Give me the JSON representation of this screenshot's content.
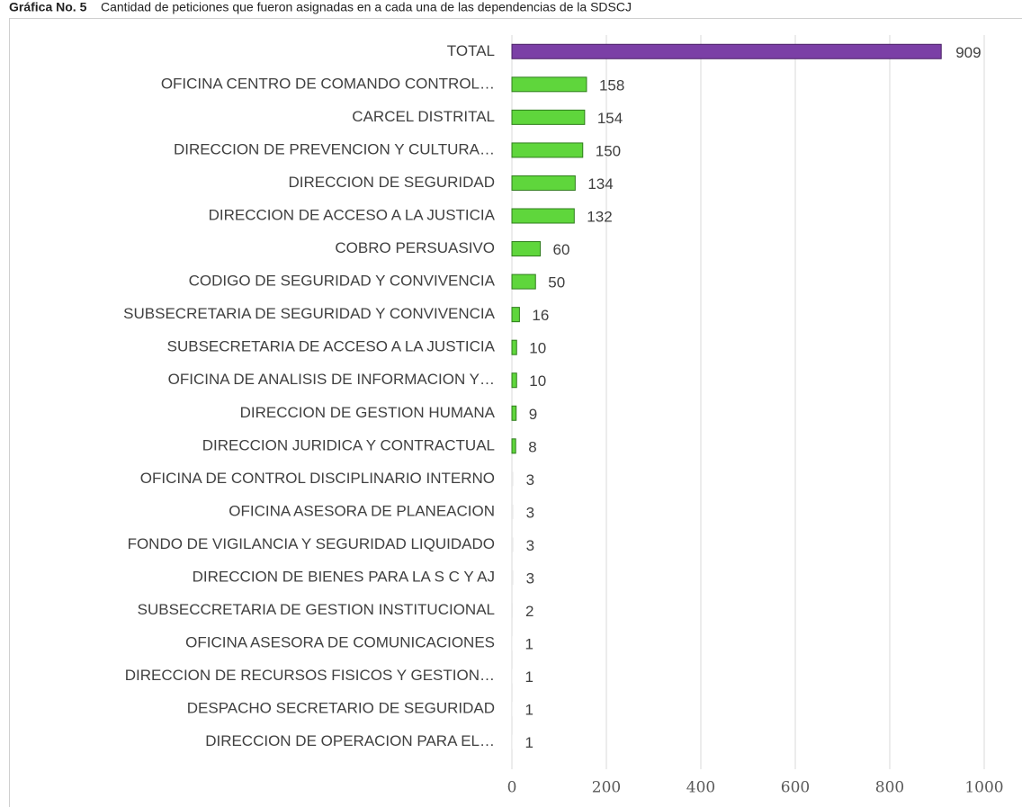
{
  "chart_data": {
    "type": "hbar",
    "title": "Gráfica No. 5",
    "subtitle": "Cantidad de peticiones que fueron asignadas en a cada una de las dependencias de la SDSCJ",
    "categories": [
      "TOTAL",
      "OFICINA CENTRO DE COMANDO CONTROL…",
      "CARCEL DISTRITAL",
      "DIRECCION DE PREVENCION Y CULTURA…",
      "DIRECCION DE SEGURIDAD",
      "DIRECCION DE ACCESO A LA JUSTICIA",
      "COBRO PERSUASIVO",
      "CODIGO DE SEGURIDAD Y CONVIVENCIA",
      "SUBSECRETARIA DE SEGURIDAD Y CONVIVENCIA",
      "SUBSECRETARIA DE ACCESO A LA JUSTICIA",
      "OFICINA DE ANALISIS DE INFORMACION Y…",
      "DIRECCION DE GESTION HUMANA",
      "DIRECCION JURIDICA Y CONTRACTUAL",
      "OFICINA DE CONTROL DISCIPLINARIO INTERNO",
      "OFICINA ASESORA DE PLANEACION",
      "FONDO DE VIGILANCIA Y SEGURIDAD LIQUIDADO",
      "DIRECCION DE BIENES PARA LA S C Y AJ",
      "SUBSECCRETARIA DE GESTION INSTITUCIONAL",
      "OFICINA ASESORA DE COMUNICACIONES",
      "DIRECCION DE RECURSOS FISICOS Y GESTION…",
      "DESPACHO SECRETARIO DE SEGURIDAD",
      "DIRECCION DE OPERACION PARA EL…"
    ],
    "values": [
      909,
      158,
      154,
      150,
      134,
      132,
      60,
      50,
      16,
      10,
      10,
      9,
      8,
      3,
      3,
      3,
      3,
      2,
      1,
      1,
      1,
      1
    ],
    "colors": [
      "#7b3fa6",
      "#5fd63c",
      "#5fd63c",
      "#5fd63c",
      "#5fd63c",
      "#5fd63c",
      "#5fd63c",
      "#5fd63c",
      "#5fd63c",
      "#5fd63c",
      "#5fd63c",
      "#5fd63c",
      "#5fd63c",
      "#e8e8e8",
      "#e8e8e8",
      "#e8e8e8",
      "#e8e8e8",
      "#e8e8e8",
      "#e8e8e8",
      "#e8e8e8",
      "#e8e8e8",
      "#e8e8e8"
    ],
    "xlim": [
      0,
      1000
    ],
    "xticks": [
      0,
      200,
      400,
      600,
      800,
      1000
    ],
    "grid": true
  }
}
